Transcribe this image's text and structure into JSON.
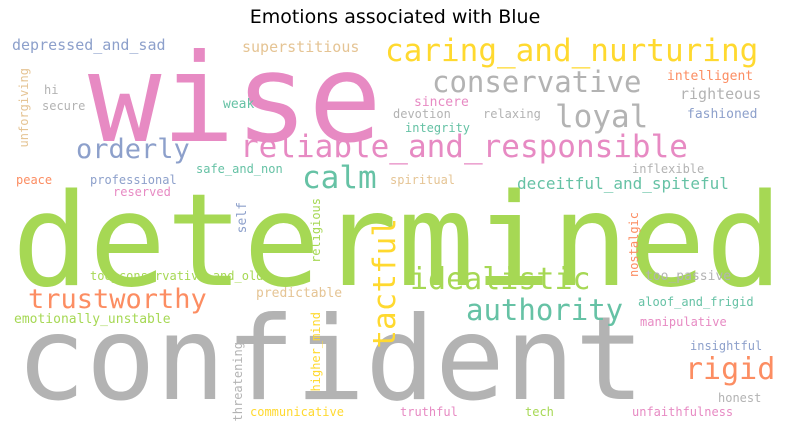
{
  "title": "Emotions associated with Blue",
  "palette": {
    "pink": "#e78ac3",
    "green": "#a6d854",
    "gray": "#b3b3b3",
    "yellow": "#ffd92f",
    "teal": "#66c2a5",
    "blue": "#8da0cb",
    "orange": "#fc8d62",
    "tan": "#e5c494"
  },
  "words": [
    "wise",
    "determined",
    "confident",
    "caring_and_nurturing",
    "conservative",
    "loyal",
    "reliable_and_responsible",
    "orderly",
    "calm",
    "deceitful_and_spiteful",
    "idealistic",
    "tactful",
    "trustworthy",
    "authority",
    "rigid",
    "depressed_and_sad",
    "superstitious",
    "intelligent",
    "righteous",
    "fashioned",
    "sincere",
    "devotion",
    "relaxing",
    "integrity",
    "weak",
    "hi",
    "secure",
    "unforgiving",
    "professional",
    "safe_and_non",
    "inflexible",
    "peace",
    "reserved",
    "spiritual",
    "self",
    "religious",
    "nostalgic",
    "too_conservative_and_old",
    "too_passive",
    "predictable",
    "emotionally_unstable",
    "higher_mind",
    "aloof_and_frigid",
    "manipulative",
    "insightful",
    "threatening",
    "honest",
    "communicative",
    "truthful",
    "tech",
    "unfaithfulness"
  ]
}
